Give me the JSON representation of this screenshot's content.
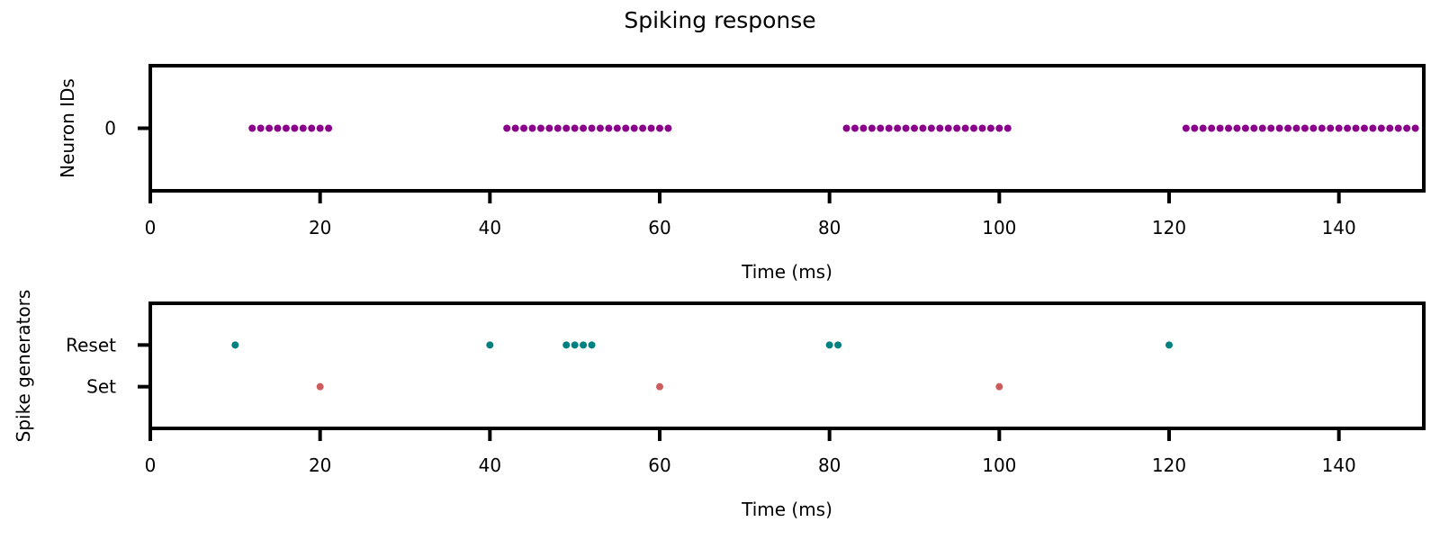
{
  "figure": {
    "title": "Spiking response"
  },
  "chart_data": [
    {
      "type": "scatter",
      "xlabel": "Time (ms)",
      "ylabel": "Neuron IDs",
      "xlim": [
        0,
        150
      ],
      "xticks": [
        0,
        20,
        40,
        60,
        80,
        100,
        120,
        140
      ],
      "yticks": [
        0
      ],
      "ytick_labels": [
        "0"
      ],
      "ylim": [
        -1.5,
        1.5
      ],
      "grid": false,
      "series": [
        {
          "color": "#8b008b",
          "points": [
            [
              12,
              0
            ],
            [
              13,
              0
            ],
            [
              14,
              0
            ],
            [
              15,
              0
            ],
            [
              16,
              0
            ],
            [
              17,
              0
            ],
            [
              18,
              0
            ],
            [
              19,
              0
            ],
            [
              20,
              0
            ],
            [
              21,
              0
            ],
            [
              42,
              0
            ],
            [
              43,
              0
            ],
            [
              44,
              0
            ],
            [
              45,
              0
            ],
            [
              46,
              0
            ],
            [
              47,
              0
            ],
            [
              48,
              0
            ],
            [
              49,
              0
            ],
            [
              50,
              0
            ],
            [
              51,
              0
            ],
            [
              52,
              0
            ],
            [
              53,
              0
            ],
            [
              54,
              0
            ],
            [
              55,
              0
            ],
            [
              56,
              0
            ],
            [
              57,
              0
            ],
            [
              58,
              0
            ],
            [
              59,
              0
            ],
            [
              60,
              0
            ],
            [
              61,
              0
            ],
            [
              82,
              0
            ],
            [
              83,
              0
            ],
            [
              84,
              0
            ],
            [
              85,
              0
            ],
            [
              86,
              0
            ],
            [
              87,
              0
            ],
            [
              88,
              0
            ],
            [
              89,
              0
            ],
            [
              90,
              0
            ],
            [
              91,
              0
            ],
            [
              92,
              0
            ],
            [
              93,
              0
            ],
            [
              94,
              0
            ],
            [
              95,
              0
            ],
            [
              96,
              0
            ],
            [
              97,
              0
            ],
            [
              98,
              0
            ],
            [
              99,
              0
            ],
            [
              100,
              0
            ],
            [
              101,
              0
            ],
            [
              122,
              0
            ],
            [
              123,
              0
            ],
            [
              124,
              0
            ],
            [
              125,
              0
            ],
            [
              126,
              0
            ],
            [
              127,
              0
            ],
            [
              128,
              0
            ],
            [
              129,
              0
            ],
            [
              130,
              0
            ],
            [
              131,
              0
            ],
            [
              132,
              0
            ],
            [
              133,
              0
            ],
            [
              134,
              0
            ],
            [
              135,
              0
            ],
            [
              136,
              0
            ],
            [
              137,
              0
            ],
            [
              138,
              0
            ],
            [
              139,
              0
            ],
            [
              140,
              0
            ],
            [
              141,
              0
            ],
            [
              142,
              0
            ],
            [
              143,
              0
            ],
            [
              144,
              0
            ],
            [
              145,
              0
            ],
            [
              146,
              0
            ],
            [
              147,
              0
            ],
            [
              148,
              0
            ],
            [
              149,
              0
            ]
          ]
        }
      ]
    },
    {
      "type": "scatter",
      "xlabel": "Time (ms)",
      "ylabel": "Spike generators",
      "xlim": [
        0,
        150
      ],
      "xticks": [
        0,
        20,
        40,
        60,
        80,
        100,
        120,
        140
      ],
      "yticks": [
        0,
        1
      ],
      "ytick_labels": [
        "Set",
        "Reset"
      ],
      "ylim": [
        -1,
        2
      ],
      "grid": false,
      "series": [
        {
          "color": "#008080",
          "points": [
            [
              10,
              1
            ],
            [
              40,
              1
            ],
            [
              49,
              1
            ],
            [
              50,
              1
            ],
            [
              51,
              1
            ],
            [
              52,
              1
            ],
            [
              80,
              1
            ],
            [
              81,
              1
            ],
            [
              120,
              1
            ]
          ]
        },
        {
          "color": "#cd5c5c",
          "points": [
            [
              20,
              0
            ],
            [
              60,
              0
            ],
            [
              100,
              0
            ]
          ]
        }
      ]
    }
  ]
}
